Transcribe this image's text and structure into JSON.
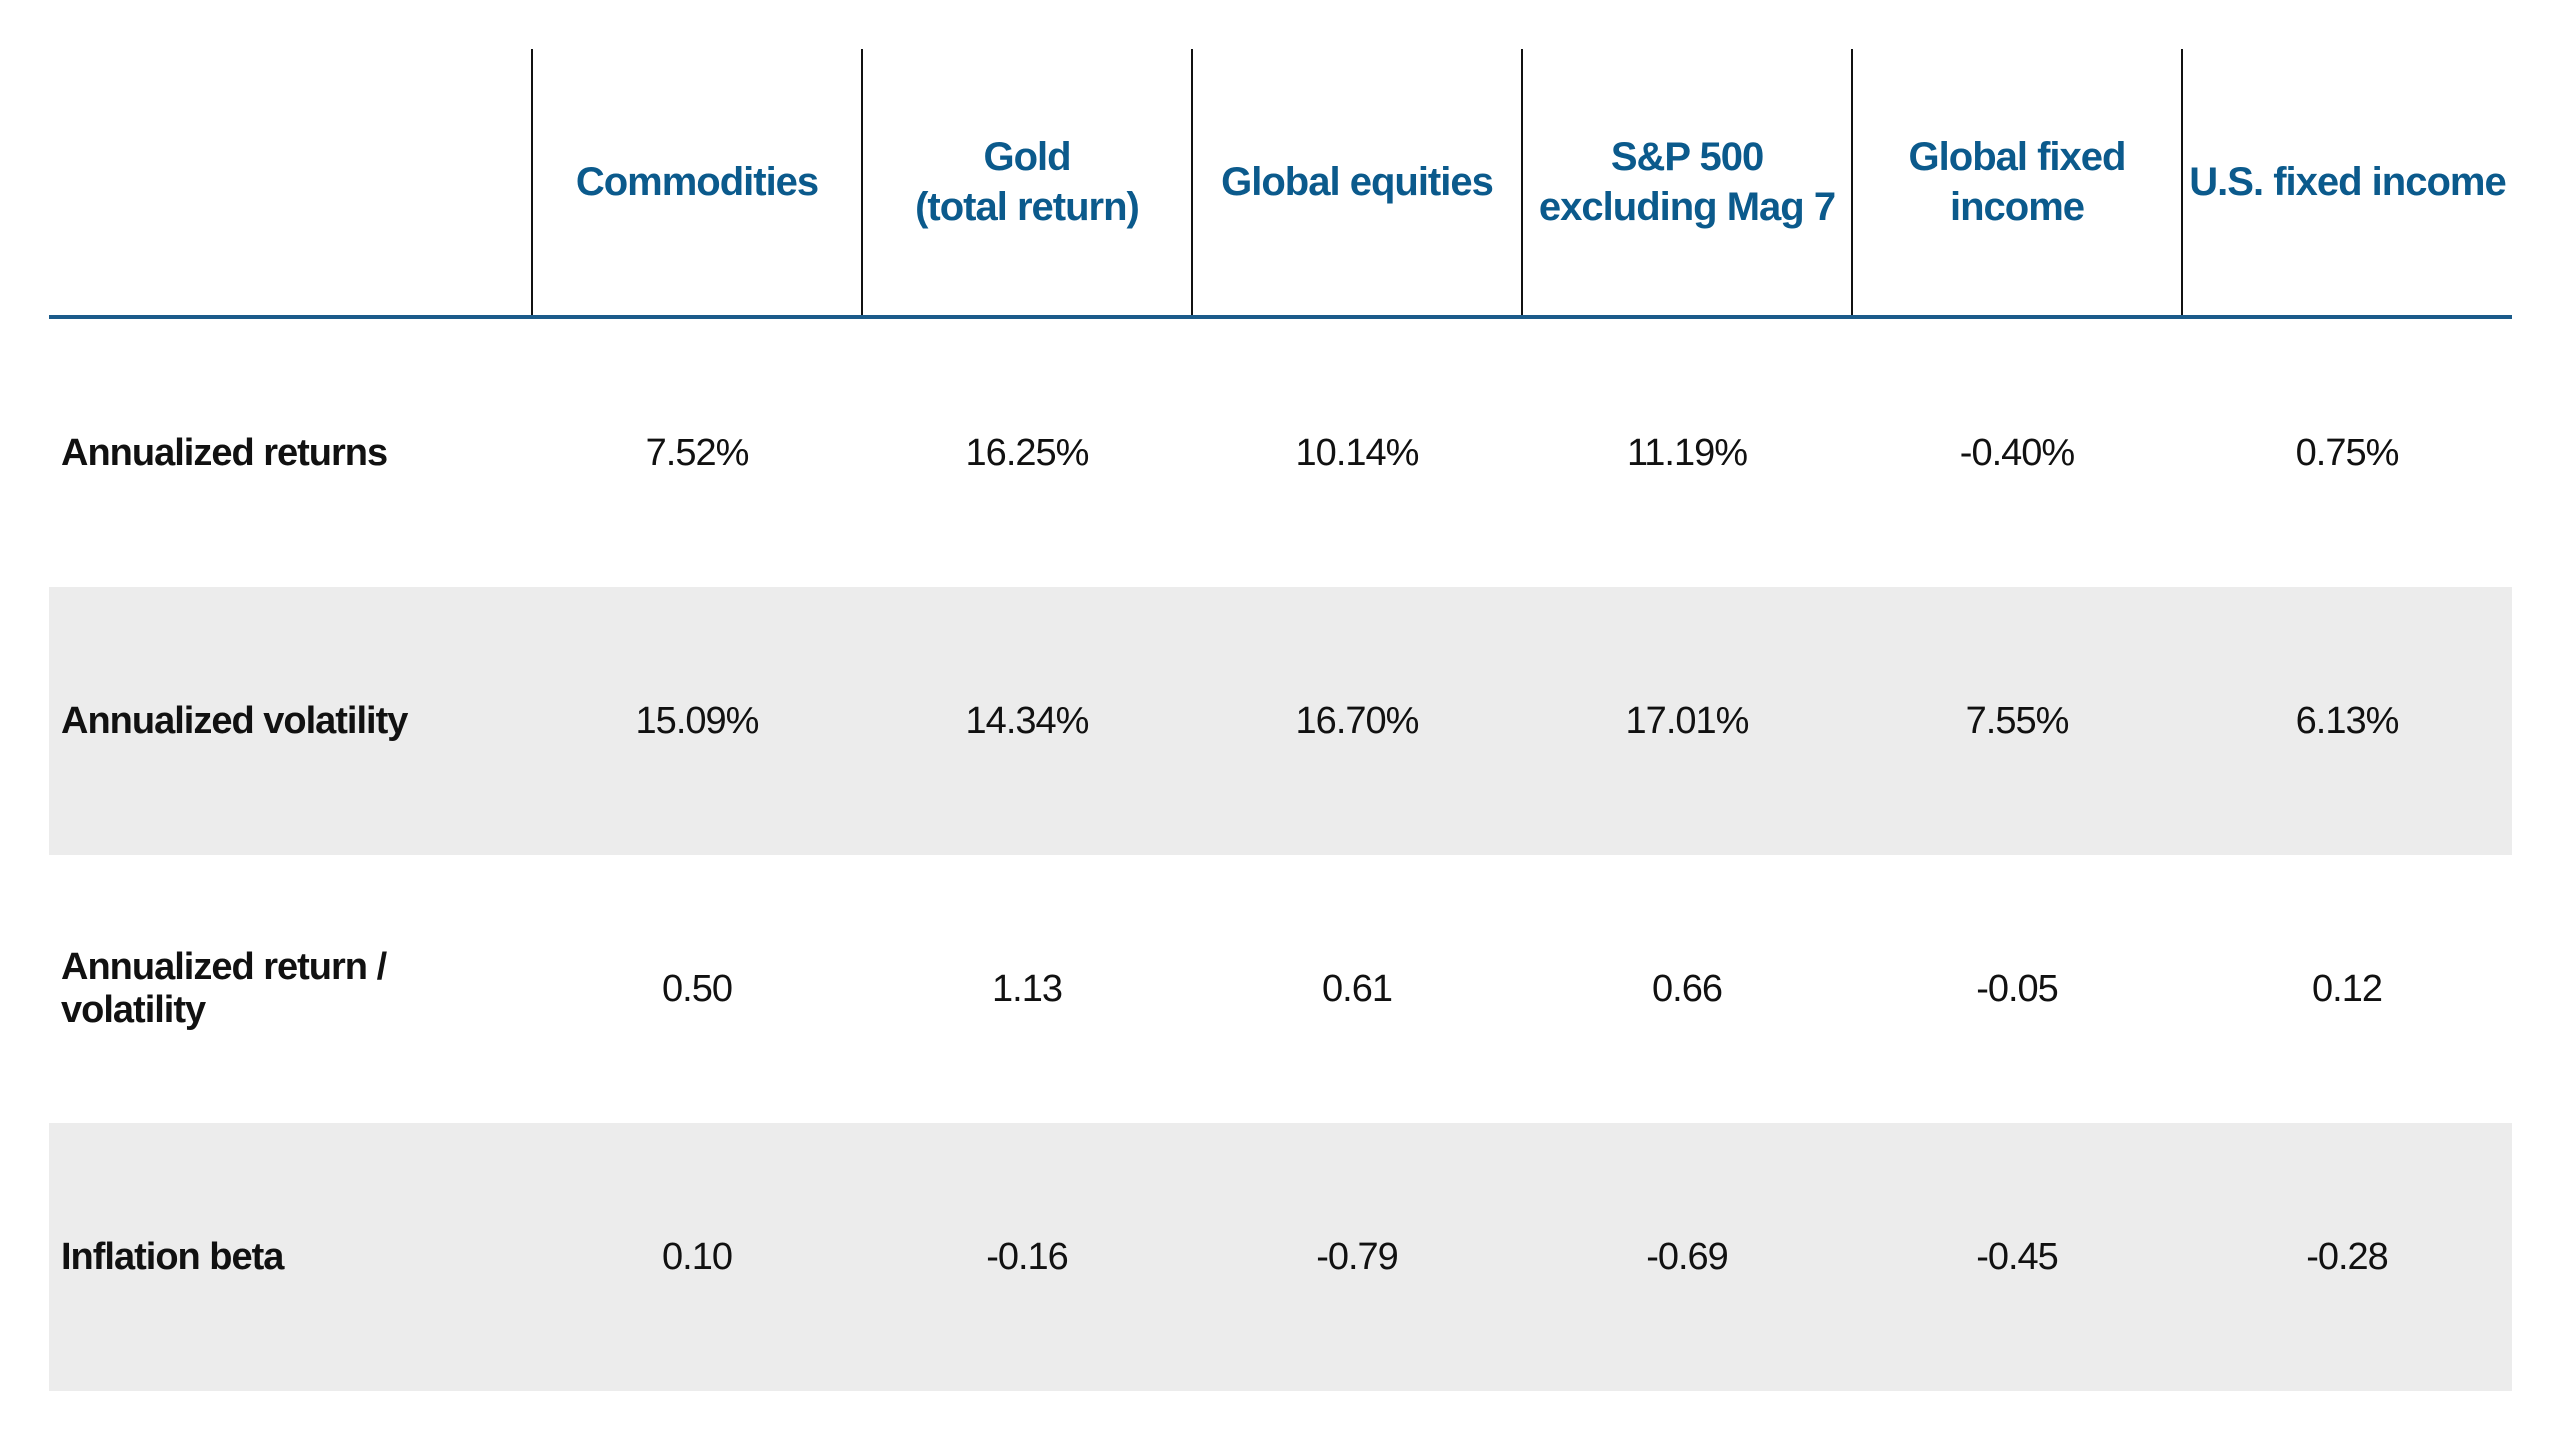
{
  "table": {
    "columns": [
      "Commodities",
      "Gold\n(total return)",
      "Global equities",
      "S&P 500\nexcluding Mag 7",
      "Global fixed\nincome",
      "U.S. fixed income"
    ],
    "rows": [
      {
        "label": "Annualized returns",
        "values": [
          "7.52%",
          "16.25%",
          "10.14%",
          "11.19%",
          "-0.40%",
          "0.75%"
        ]
      },
      {
        "label": "Annualized volatility",
        "values": [
          "15.09%",
          "14.34%",
          "16.70%",
          "17.01%",
          "7.55%",
          "6.13%"
        ]
      },
      {
        "label": "Annualized return / volatility",
        "values": [
          "0.50",
          "1.13",
          "0.61",
          "0.66",
          "-0.05",
          "0.12"
        ]
      },
      {
        "label": "Inflation beta",
        "values": [
          "0.10",
          "-0.16",
          "-0.79",
          "-0.69",
          "-0.45",
          "-0.28"
        ]
      }
    ]
  }
}
